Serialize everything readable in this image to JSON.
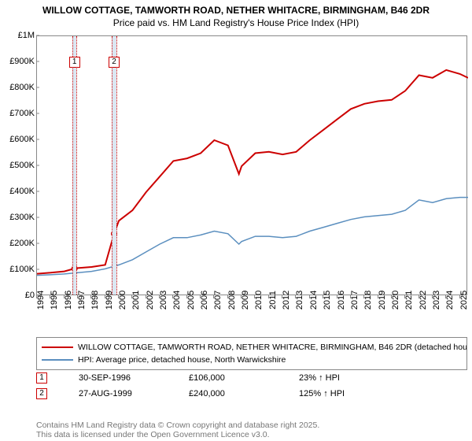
{
  "title_line1": "WILLOW COTTAGE, TAMWORTH ROAD, NETHER WHITACRE, BIRMINGHAM, B46 2DR",
  "title_line2": "Price paid vs. HM Land Registry's House Price Index (HPI)",
  "chart": {
    "type": "line",
    "background_color": "#ffffff",
    "border_color": "#888888",
    "x_years": [
      1994,
      1995,
      1996,
      1997,
      1998,
      1999,
      2000,
      2001,
      2002,
      2003,
      2004,
      2005,
      2006,
      2007,
      2008,
      2009,
      2010,
      2011,
      2012,
      2013,
      2014,
      2015,
      2016,
      2017,
      2018,
      2019,
      2020,
      2021,
      2022,
      2023,
      2024,
      2025
    ],
    "xlim": [
      1994,
      2025.6
    ],
    "ylim": [
      0,
      1000000
    ],
    "ytick_step": 100000,
    "yticks": [
      "£0",
      "£100K",
      "£200K",
      "£300K",
      "£400K",
      "£500K",
      "£600K",
      "£700K",
      "£800K",
      "£900K",
      "£1M"
    ],
    "x_label_fontsize": 11,
    "y_label_fontsize": 11,
    "series": [
      {
        "name": "property",
        "color": "#cc0000",
        "width": 2,
        "x": [
          1994,
          1995,
          1996,
          1996.75,
          1997,
          1998,
          1999,
          1999.65,
          2000,
          2001,
          2002,
          2003,
          2004,
          2005,
          2006,
          2007,
          2008,
          2008.8,
          2009,
          2010,
          2011,
          2012,
          2013,
          2014,
          2015,
          2016,
          2017,
          2018,
          2019,
          2020,
          2021,
          2022,
          2023,
          2024,
          2025,
          2025.6
        ],
        "y": [
          86000,
          90000,
          95000,
          106000,
          108000,
          112000,
          120000,
          240000,
          290000,
          330000,
          400000,
          460000,
          520000,
          530000,
          550000,
          600000,
          580000,
          470000,
          500000,
          550000,
          555000,
          545000,
          555000,
          600000,
          640000,
          680000,
          720000,
          740000,
          750000,
          755000,
          790000,
          850000,
          840000,
          870000,
          855000,
          840000
        ]
      },
      {
        "name": "hpi",
        "color": "#5b8fbf",
        "width": 1.5,
        "x": [
          1994,
          1995,
          1996,
          1997,
          1998,
          1999,
          2000,
          2001,
          2002,
          2003,
          2004,
          2005,
          2006,
          2007,
          2008,
          2008.8,
          2009,
          2010,
          2011,
          2012,
          2013,
          2014,
          2015,
          2016,
          2017,
          2018,
          2019,
          2020,
          2021,
          2022,
          2023,
          2024,
          2025,
          2025.6
        ],
        "y": [
          80000,
          82000,
          85000,
          90000,
          95000,
          105000,
          120000,
          140000,
          170000,
          200000,
          225000,
          225000,
          235000,
          250000,
          240000,
          200000,
          210000,
          230000,
          230000,
          225000,
          230000,
          250000,
          265000,
          280000,
          295000,
          305000,
          310000,
          315000,
          330000,
          370000,
          360000,
          375000,
          380000,
          380000
        ]
      }
    ],
    "highlight_bands": [
      {
        "from": 1996.6,
        "to": 1996.9,
        "color": "#dbe7f2"
      },
      {
        "from": 1999.5,
        "to": 1999.8,
        "color": "#dbe7f2"
      }
    ],
    "markers": [
      {
        "label": "1",
        "x": 1996.75,
        "y": 900000
      },
      {
        "label": "2",
        "x": 1999.65,
        "y": 900000
      }
    ]
  },
  "legend": {
    "items": [
      {
        "color": "#cc0000",
        "width": 2,
        "label": "WILLOW COTTAGE, TAMWORTH ROAD, NETHER WHITACRE, BIRMINGHAM, B46 2DR (detached house)"
      },
      {
        "color": "#5b8fbf",
        "width": 1.5,
        "label": "HPI: Average price, detached house, North Warwickshire"
      }
    ]
  },
  "callouts": [
    {
      "num": "1",
      "date": "30-SEP-1996",
      "price": "£106,000",
      "pct": "23% ↑ HPI"
    },
    {
      "num": "2",
      "date": "27-AUG-1999",
      "price": "£240,000",
      "pct": "125% ↑ HPI"
    }
  ],
  "footer_line1": "Contains HM Land Registry data © Crown copyright and database right 2025.",
  "footer_line2": "This data is licensed under the Open Government Licence v3.0."
}
